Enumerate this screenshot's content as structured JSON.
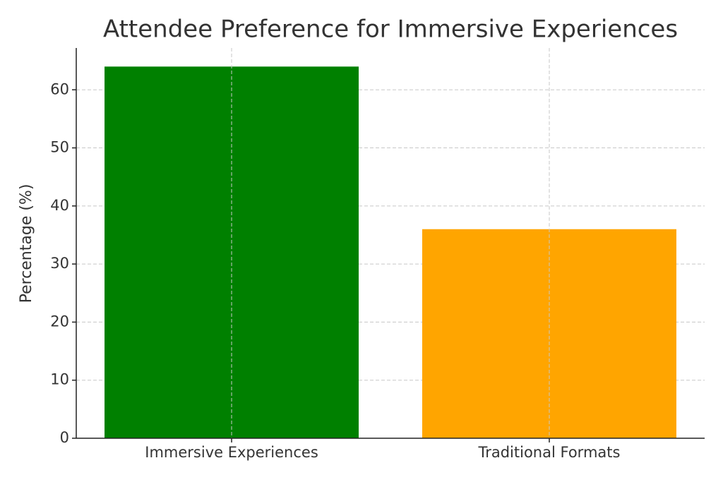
{
  "chart_data": {
    "type": "bar",
    "title": "Attendee Preference for Immersive Experiences",
    "y_label": "Percentage (%)",
    "categories": [
      "Immersive Experiences",
      "Traditional Formats"
    ],
    "values": [
      64,
      36
    ],
    "colors": [
      "green",
      "orange"
    ],
    "ylim": [
      0,
      67.2
    ],
    "yticks": [
      0,
      10,
      20,
      30,
      40,
      50,
      60
    ],
    "grid": true
  }
}
